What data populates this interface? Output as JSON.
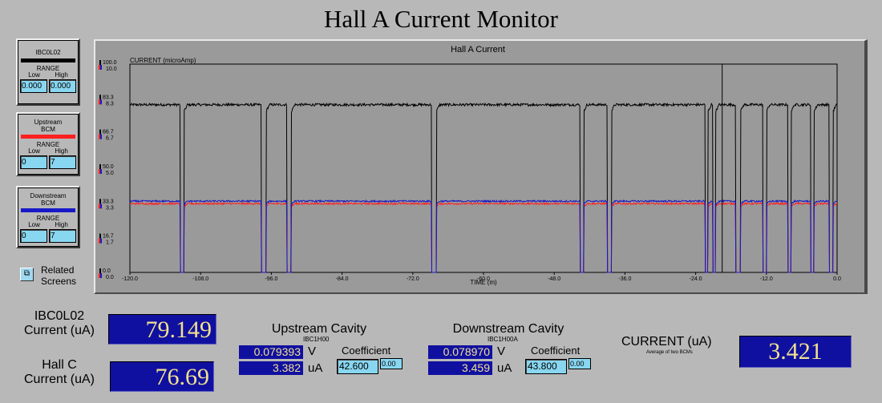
{
  "title": "Hall A Current Monitor",
  "panels": [
    {
      "name": "IBC0L02",
      "name2": "",
      "color": "#000000",
      "range_label": "RANGE",
      "low_label": "Low",
      "high_label": "High",
      "low": "0.000",
      "high": "0.000"
    },
    {
      "name": "Upstream",
      "name2": "BCM",
      "color": "#ff2020",
      "range_label": "RANGE",
      "low_label": "Low",
      "high_label": "High",
      "low": "0",
      "high": "7"
    },
    {
      "name": "Downstream",
      "name2": "BCM",
      "color": "#1818c8",
      "range_label": "RANGE",
      "low_label": "Low",
      "high_label": "High",
      "low": "0",
      "high": "7"
    }
  ],
  "related": {
    "line1": "Related",
    "line2": "Screens",
    "icon": "window-icon"
  },
  "chart_data": {
    "type": "line",
    "title": "Hall A Current",
    "ylabel": "CURRENT (microAmp)",
    "xlabel": "TIME (m)",
    "xlim": [
      -120,
      0
    ],
    "x_ticks": [
      "-120.0",
      "-108.0",
      "-96.0",
      "-84.0",
      "-72.0",
      "-60.0",
      "-48.0",
      "-36.0",
      "-24.0",
      "-12.0",
      "0.0"
    ],
    "y_ticks_primary": [
      "100.0",
      "83.3",
      "66.7",
      "50.0",
      "33.3",
      "16.7",
      "0.0"
    ],
    "y_ticks_secondary": [
      "10.0",
      "8.3",
      "6.7",
      "5.0",
      "3.3",
      "1.7",
      "0.0"
    ],
    "ylim_primary": [
      0,
      100
    ],
    "ylim_secondary": [
      0,
      10
    ],
    "grid": false,
    "cursor_x": -19.5,
    "series": [
      {
        "color": "#000000",
        "axis": "primary",
        "baseline": 80.5,
        "noise": 0.6
      },
      {
        "color": "#ff2020",
        "axis": "secondary",
        "baseline": 3.3,
        "noise": 0.04
      },
      {
        "color": "#1818c8",
        "axis": "secondary",
        "baseline": 3.42,
        "noise": 0.04
      }
    ],
    "trips": [
      {
        "start": -111.5,
        "end": -110.8,
        "low_primary": 0,
        "low_secondary": 0
      },
      {
        "start": -97.7,
        "end": -96.9,
        "low_primary": 0,
        "low_secondary": 0
      },
      {
        "start": -93.4,
        "end": -92.6,
        "low_primary": 0,
        "low_secondary": 0
      },
      {
        "start": -68.8,
        "end": -68.0,
        "low_primary": 0,
        "low_secondary": 0
      },
      {
        "start": -43.6,
        "end": -43.0,
        "low_primary": 0,
        "low_secondary": 0
      },
      {
        "start": -39.0,
        "end": -38.3,
        "low_primary": 0,
        "low_secondary": 0
      },
      {
        "start": -22.4,
        "end": -21.9,
        "low_primary": 0,
        "low_secondary": 0
      },
      {
        "start": -21.1,
        "end": -20.6,
        "low_primary": 0,
        "low_secondary": 0
      },
      {
        "start": -17.2,
        "end": -16.4,
        "low_primary": 0,
        "low_secondary": 0
      },
      {
        "start": -12.6,
        "end": -12.0,
        "low_primary": 0,
        "low_secondary": 0
      },
      {
        "start": -8.4,
        "end": -7.8,
        "low_primary": 0,
        "low_secondary": 0
      },
      {
        "start": -4.5,
        "end": -3.9,
        "low_primary": 0,
        "low_secondary": 0
      },
      {
        "start": -1.3,
        "end": -0.7,
        "low_primary": 0,
        "low_secondary": 0
      }
    ]
  },
  "readouts": {
    "ibc_label1": "IBC0L02",
    "ibc_label2": "Current (uA)",
    "ibc_value": "79.149",
    "hallc_label1": "Hall C",
    "hallc_label2": "Current (uA)",
    "hallc_value": "76.69"
  },
  "upstream": {
    "title": "Upstream Cavity",
    "sub": "IBC1H00",
    "volts": "0.079393",
    "volt_unit": "V",
    "current": "3.382",
    "current_unit": "uA",
    "coef_label": "Coefficient",
    "coef": "42.600",
    "offset": "0.00"
  },
  "downstream": {
    "title": "Downstream Cavity",
    "sub": "IBC1H00A",
    "volts": "0.078970",
    "volt_unit": "V",
    "current": "3.459",
    "current_unit": "uA",
    "coef_label": "Coefficient",
    "coef": "43.800",
    "offset": "0.00"
  },
  "average": {
    "label": "CURRENT (uA)",
    "sub": "Average of two BCMs",
    "value": "3.421"
  }
}
